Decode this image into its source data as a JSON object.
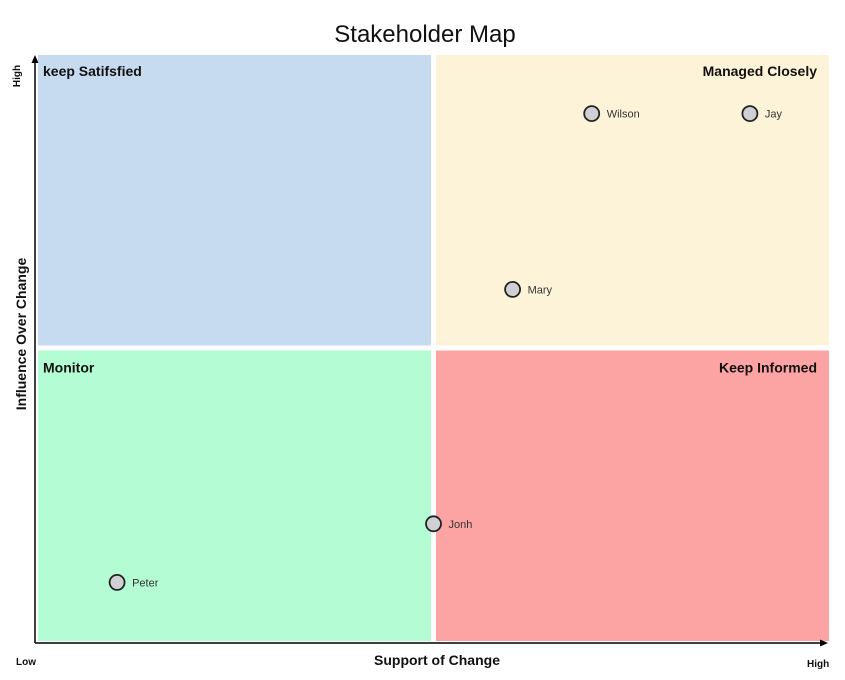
{
  "chart_data": {
    "type": "scatter",
    "title": "Stakeholder Map",
    "xlabel": "Support of Change",
    "ylabel": "Influence Over Change",
    "xlim": [
      0,
      100
    ],
    "ylim": [
      0,
      100
    ],
    "x_low_label": "Low",
    "x_high_label": "High",
    "y_high_label": "High",
    "grid": false,
    "legend": "none",
    "quadrants": [
      {
        "key": "top-left",
        "label": "keep Satifsfied",
        "color": "#c6dbf0",
        "label_align": "left"
      },
      {
        "key": "top-right",
        "label": "Managed Closely",
        "color": "#fdf3d8",
        "label_align": "right"
      },
      {
        "key": "bottom-left",
        "label": "Monitor",
        "color": "#b4fcd4",
        "label_align": "left"
      },
      {
        "key": "bottom-right",
        "label": "Keep Informed",
        "color": "#fca3a3",
        "label_align": "right"
      }
    ],
    "points": [
      {
        "name": "Wilson",
        "x": 70,
        "y": 90
      },
      {
        "name": "Jay",
        "x": 90,
        "y": 90
      },
      {
        "name": "Mary",
        "x": 60,
        "y": 60
      },
      {
        "name": "Jonh",
        "x": 50,
        "y": 20
      },
      {
        "name": "Peter",
        "x": 10,
        "y": 10
      }
    ],
    "marker_color": "#d0d0d4"
  }
}
